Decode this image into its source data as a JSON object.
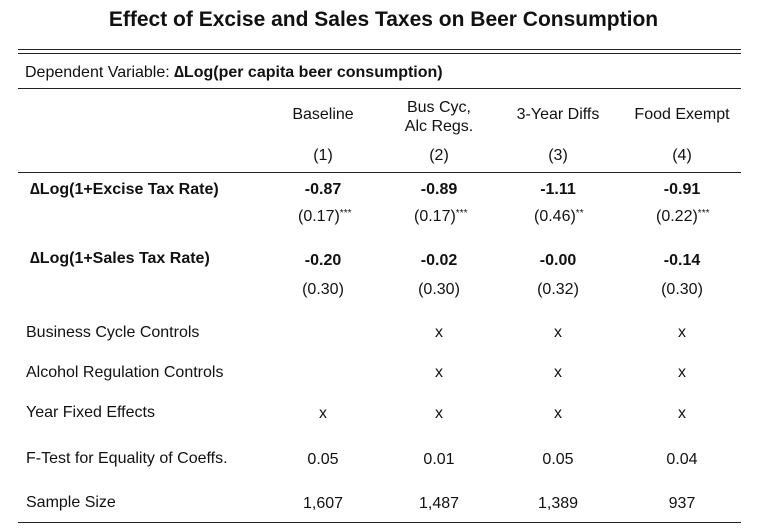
{
  "title": "Effect of Excise and Sales Taxes on Beer Consumption",
  "dependent_variable": {
    "label": "Dependent Variable: ",
    "value": "∆Log(per capita beer consumption)"
  },
  "columns": [
    {
      "header_line1": "Baseline",
      "header_line2": "",
      "number": "(1)"
    },
    {
      "header_line1": "Bus Cyc,",
      "header_line2": "Alc Regs.",
      "number": "(2)"
    },
    {
      "header_line1": "3-Year Diffs",
      "header_line2": "",
      "number": "(3)"
    },
    {
      "header_line1": "Food Exempt",
      "header_line2": "",
      "number": "(4)"
    }
  ],
  "rows": {
    "excise": {
      "label": "∆Log(1+Excise Tax Rate)",
      "coefs": [
        "-0.87",
        "-0.89",
        "-1.11",
        "-0.91"
      ],
      "se": [
        "(0.17)",
        "(0.17)",
        "(0.46)",
        "(0.22)"
      ],
      "stars": [
        "***",
        "***",
        "**",
        "***"
      ]
    },
    "sales": {
      "label": "∆Log(1+Sales Tax Rate)",
      "coefs": [
        "-0.20",
        "-0.02",
        "-0.00",
        "-0.14"
      ],
      "se": [
        "(0.30)",
        "(0.30)",
        "(0.32)",
        "(0.30)"
      ]
    },
    "business_cycle": {
      "label": "Business Cycle Controls",
      "values": [
        "",
        "x",
        "x",
        "x"
      ]
    },
    "alcohol_regulation": {
      "label": "Alcohol Regulation Controls",
      "values": [
        "",
        "x",
        "x",
        "x"
      ]
    },
    "year_fe": {
      "label": "Year Fixed Effects",
      "values": [
        "x",
        "x",
        "x",
        "x"
      ]
    },
    "ftest": {
      "label": "F-Test for Equality of Coeffs.",
      "values": [
        "0.05",
        "0.01",
        "0.05",
        "0.04"
      ]
    },
    "sample_size": {
      "label": "Sample Size",
      "values": [
        "1,607",
        "1,487",
        "1,389",
        "937"
      ]
    }
  }
}
